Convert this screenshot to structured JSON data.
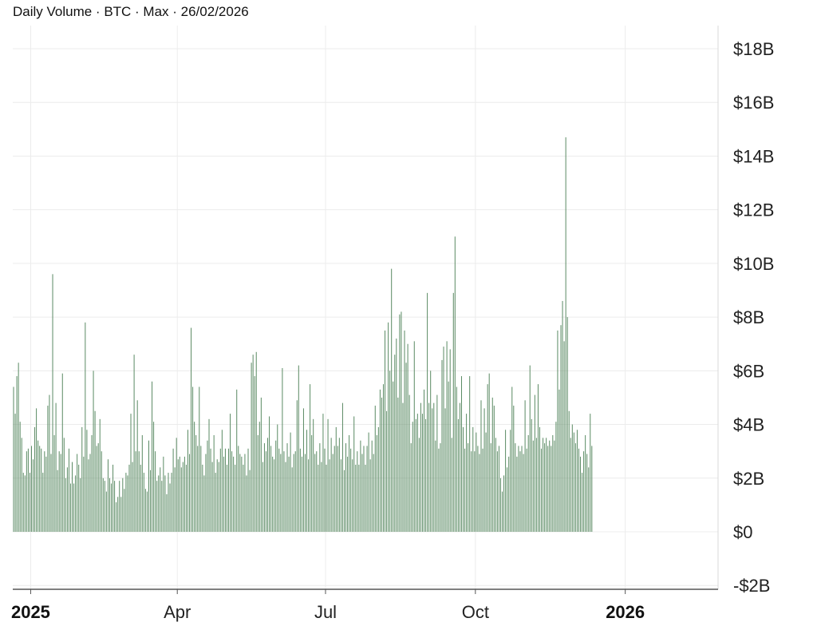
{
  "chart_data": {
    "type": "bar",
    "title": "Daily Volume · BTC · Max · 26/02/2026",
    "bar_color": "#5a8a63",
    "grid": true,
    "ylim": [
      -2,
      18.8
    ],
    "y_ticks": [
      {
        "value": 18,
        "label": "$18B"
      },
      {
        "value": 16,
        "label": "$16B"
      },
      {
        "value": 14,
        "label": "$14B"
      },
      {
        "value": 12,
        "label": "$12B"
      },
      {
        "value": 10,
        "label": "$10B"
      },
      {
        "value": 8,
        "label": "$8B"
      },
      {
        "value": 6,
        "label": "$6B"
      },
      {
        "value": 4,
        "label": "$4B"
      },
      {
        "value": 2,
        "label": "$2B"
      },
      {
        "value": 0,
        "label": "$0"
      },
      {
        "value": -2,
        "label": "-$2B"
      }
    ],
    "x_start": "2024-12-21",
    "x_end": "2026-02-26",
    "x_ticks": [
      {
        "date": "2025-01-01",
        "label": "2025",
        "bold": true
      },
      {
        "date": "2025-04-01",
        "label": "Apr",
        "bold": false
      },
      {
        "date": "2025-07-01",
        "label": "Jul",
        "bold": false
      },
      {
        "date": "2025-10-01",
        "label": "Oct",
        "bold": false
      },
      {
        "date": "2026-01-01",
        "label": "2026",
        "bold": true
      }
    ],
    "values": [
      5.4,
      4.4,
      5.8,
      6.3,
      4.1,
      3.5,
      2.2,
      2.1,
      3.0,
      3.1,
      2.2,
      3.2,
      2.7,
      3.9,
      4.6,
      3.4,
      3.2,
      3.1,
      2.2,
      3.0,
      2.8,
      4.7,
      5.1,
      2.9,
      9.6,
      3.6,
      4.8,
      2.3,
      3.0,
      2.9,
      5.9,
      3.5,
      2.0,
      2.4,
      3.1,
      1.8,
      2.6,
      1.8,
      2.1,
      2.9,
      2.5,
      2.0,
      3.9,
      2.8,
      7.8,
      3.8,
      2.7,
      2.9,
      3.6,
      6.0,
      4.5,
      3.2,
      3.3,
      4.2,
      3.0,
      2.0,
      1.9,
      1.5,
      2.7,
      2.0,
      1.8,
      2.5,
      1.9,
      1.1,
      1.3,
      1.9,
      1.3,
      2.0,
      1.6,
      2.2,
      2.1,
      2.5,
      4.4,
      2.6,
      6.6,
      3.0,
      4.9,
      3.0,
      2.5,
      3.6,
      2.2,
      1.6,
      1.5,
      3.4,
      2.3,
      5.6,
      4.1,
      3.0,
      1.9,
      2.1,
      2.4,
      1.9,
      2.8,
      2.1,
      1.4,
      2.2,
      1.8,
      2.2,
      3.1,
      2.4,
      3.5,
      2.7,
      2.8,
      2.4,
      2.6,
      2.8,
      2.5,
      3.8,
      2.9,
      7.6,
      5.4,
      4.1,
      3.6,
      3.2,
      5.4,
      3.2,
      2.5,
      2.1,
      2.9,
      3.4,
      4.2,
      3.1,
      2.6,
      3.6,
      2.2,
      2.7,
      2.6,
      3.1,
      3.8,
      2.8,
      3.1,
      2.5,
      3.1,
      4.4,
      3.0,
      2.8,
      2.5,
      5.3,
      3.2,
      2.9,
      2.8,
      2.5,
      2.9,
      2.1,
      3.1,
      2.3,
      6.3,
      6.6,
      5.8,
      6.7,
      3.6,
      4.1,
      5.0,
      2.6,
      3.3,
      3.0,
      3.5,
      4.3,
      3.2,
      2.8,
      2.7,
      3.4,
      4.0,
      3.1,
      2.9,
      6.1,
      3.0,
      2.6,
      3.3,
      2.8,
      3.7,
      2.4,
      2.9,
      3.0,
      4.9,
      6.2,
      3.1,
      2.8,
      4.6,
      2.9,
      3.8,
      2.7,
      5.5,
      3.6,
      4.2,
      2.9,
      3.0,
      2.5,
      3.3,
      2.6,
      4.4,
      3.1,
      2.5,
      4.2,
      2.7,
      3.5,
      2.9,
      3.2,
      3.9,
      3.2,
      3.5,
      2.7,
      4.8,
      2.3,
      3.3,
      2.8,
      3.6,
      3.1,
      2.7,
      4.3,
      2.5,
      3.0,
      2.5,
      3.4,
      2.9,
      3.2,
      2.5,
      3.2,
      3.7,
      2.7,
      3.4,
      2.9,
      4.7,
      3.6,
      3.9,
      5.3,
      5.0,
      5.5,
      7.5,
      4.5,
      7.8,
      6.0,
      9.8,
      5.6,
      6.6,
      7.2,
      5.0,
      8.1,
      8.2,
      4.8,
      7.5,
      6.3,
      7.0,
      5.1,
      3.3,
      4.1,
      7.1,
      4.2,
      4.4,
      3.5,
      4.8,
      4.4,
      5.3,
      4.2,
      8.9,
      4.8,
      6.0,
      4.6,
      4.8,
      3.4,
      5.1,
      3.1,
      3.3,
      6.4,
      6.9,
      4.6,
      7.1,
      5.6,
      6.8,
      3.5,
      8.9,
      11.0,
      5.4,
      4.2,
      4.8,
      5.8,
      3.9,
      3.1,
      4.4,
      3.3,
      5.8,
      3.0,
      3.9,
      3.0,
      3.7,
      3.2,
      2.9,
      4.9,
      3.1,
      4.6,
      3.7,
      5.5,
      5.9,
      3.3,
      5.0,
      4.7,
      3.5,
      3.0,
      3.2,
      2.0,
      1.5,
      2.1,
      3.8,
      2.4,
      2.8,
      3.8,
      5.4,
      4.7,
      3.3,
      2.8,
      3.2,
      3.0,
      3.2,
      2.9,
      4.9,
      3.1,
      3.6,
      6.2,
      4.2,
      3.4,
      5.1,
      3.5,
      5.5,
      3.9,
      3.1,
      3.5,
      3.3,
      3.5,
      3.2,
      3.4,
      3.2,
      3.6,
      3.4,
      4.1,
      7.5,
      5.3,
      7.7,
      8.6,
      7.1,
      14.7,
      8.0,
      4.5,
      3.5,
      4.0,
      3.7,
      3.3,
      3.8,
      3.1,
      2.8,
      2.2,
      3.0,
      3.6,
      2.9,
      2.4,
      4.4,
      3.2
    ]
  }
}
